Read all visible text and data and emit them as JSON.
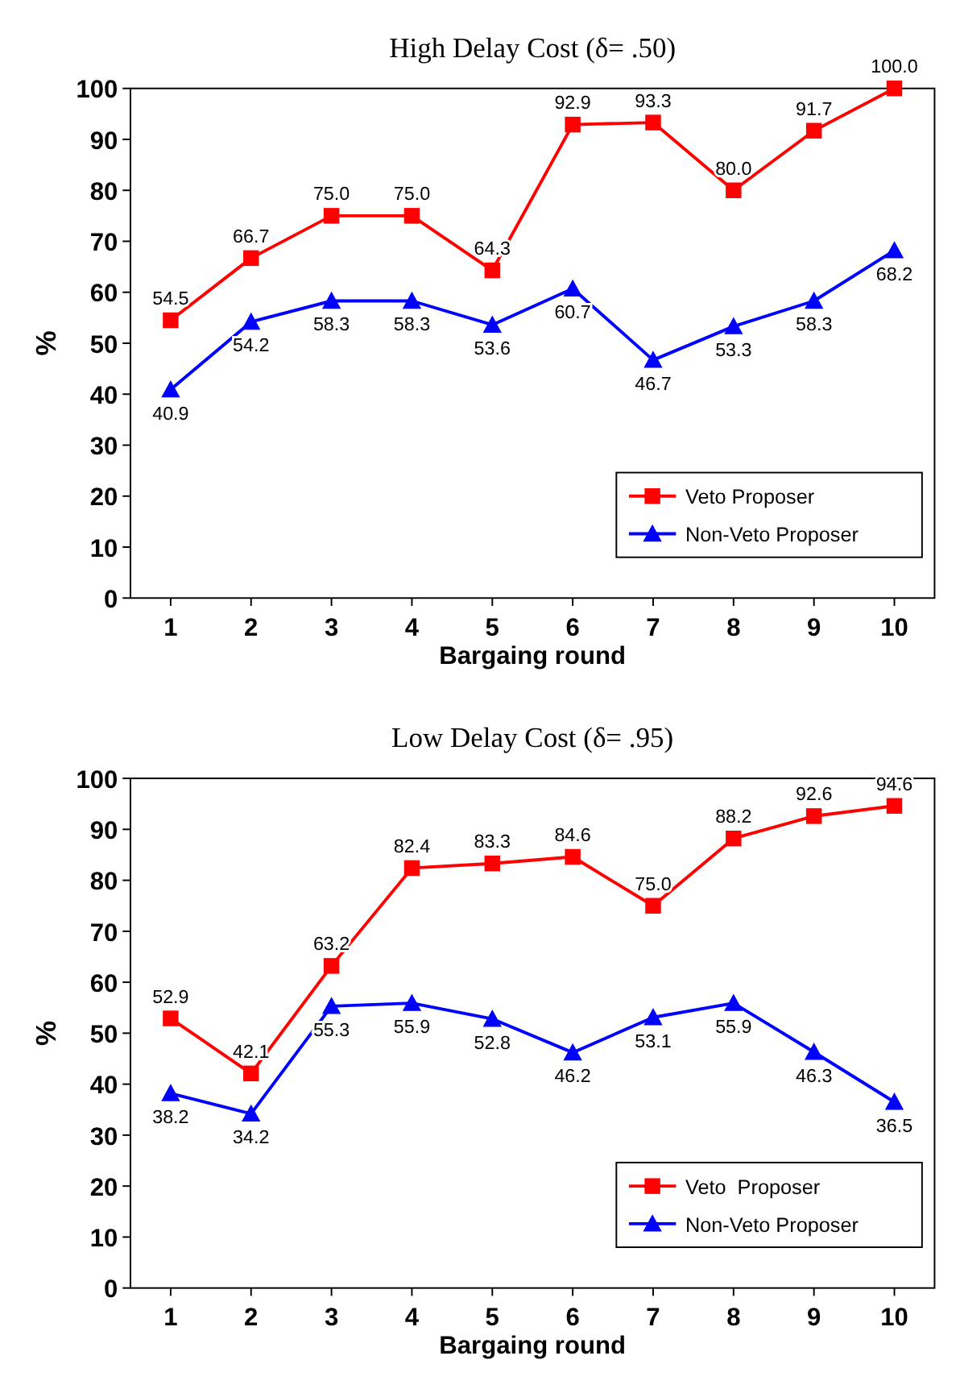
{
  "chart_data": [
    {
      "type": "line",
      "title": "High Delay Cost (δ= .50)",
      "xlabel": "Bargaing round",
      "ylabel": "%",
      "categories": [
        "1",
        "2",
        "3",
        "4",
        "5",
        "6",
        "7",
        "8",
        "9",
        "10"
      ],
      "ylim": [
        0,
        100
      ],
      "yticks": [
        0,
        10,
        20,
        30,
        40,
        50,
        60,
        70,
        80,
        90,
        100
      ],
      "grid": false,
      "legend": "bottom right",
      "series": [
        {
          "name": "Veto Proposer",
          "color": "#ff0000",
          "marker": "square",
          "values": [
            54.5,
            66.7,
            75.0,
            75.0,
            64.3,
            92.9,
            93.3,
            80.0,
            91.7,
            100.0
          ],
          "value_labels": [
            "54.5",
            "66.7",
            "75.0",
            "75.0",
            "64.3",
            "92.9",
            "93.3",
            "80.0",
            "91.7",
            "100.0"
          ]
        },
        {
          "name": "Non-Veto Proposer",
          "color": "#0000ff",
          "marker": "triangle",
          "values": [
            40.9,
            54.2,
            58.3,
            58.3,
            53.6,
            60.7,
            46.7,
            53.3,
            58.3,
            68.2
          ],
          "value_labels": [
            "40.9",
            "54.2",
            "58.3",
            "58.3",
            "53.6",
            "60.7",
            "46.7",
            "53.3",
            "58.3",
            "68.2"
          ]
        }
      ]
    },
    {
      "type": "line",
      "title": "Low Delay Cost (δ= .95)",
      "xlabel": "Bargaing round",
      "ylabel": "%",
      "categories": [
        "1",
        "2",
        "3",
        "4",
        "5",
        "6",
        "7",
        "8",
        "9",
        "10"
      ],
      "ylim": [
        0,
        100
      ],
      "yticks": [
        0,
        10,
        20,
        30,
        40,
        50,
        60,
        70,
        80,
        90,
        100
      ],
      "grid": false,
      "legend": "bottom right",
      "series": [
        {
          "name": "Veto  Proposer",
          "color": "#ff0000",
          "marker": "square",
          "values": [
            52.9,
            42.1,
            63.2,
            82.4,
            83.3,
            84.6,
            75.0,
            88.2,
            92.6,
            94.6
          ],
          "value_labels": [
            "52.9",
            "42.1",
            "63.2",
            "82.4",
            "83.3",
            "84.6",
            "75.0",
            "88.2",
            "92.6",
            "94.6"
          ]
        },
        {
          "name": "Non-Veto Proposer",
          "color": "#0000ff",
          "marker": "triangle",
          "values": [
            38.2,
            34.2,
            55.3,
            55.9,
            52.8,
            46.2,
            53.1,
            55.9,
            46.3,
            36.5
          ],
          "value_labels": [
            "38.2",
            "34.2",
            "55.3",
            "55.9",
            "52.8",
            "46.2",
            "53.1",
            "55.9",
            "46.3",
            "36.5"
          ]
        }
      ]
    }
  ]
}
